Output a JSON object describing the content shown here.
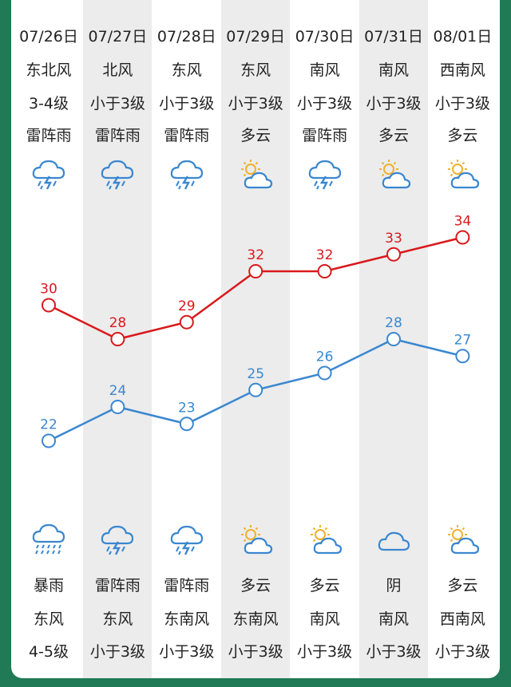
{
  "colors": {
    "background": "#1f7a55",
    "panel": "#ffffff",
    "shade": "#ececec",
    "high_line": "#d9191c",
    "low_line": "#3a87d0",
    "icon": "#3a87d0",
    "icon_sun": "#f0b12c"
  },
  "days": [
    {
      "date": "07/26日",
      "day_wind_dir": "东北风",
      "day_wind_level": "3-4级",
      "day_weather": "雷阵雨",
      "day_icon": "thunderstorm-icon",
      "night_icon": "heavy-rain-icon",
      "night_weather": "暴雨",
      "night_wind_dir": "东风",
      "night_wind_level": "4-5级",
      "shaded": false
    },
    {
      "date": "07/27日",
      "day_wind_dir": "北风",
      "day_wind_level": "小于3级",
      "day_weather": "雷阵雨",
      "day_icon": "thunderstorm-icon",
      "night_icon": "thunderstorm-icon",
      "night_weather": "雷阵雨",
      "night_wind_dir": "东风",
      "night_wind_level": "小于3级",
      "shaded": true
    },
    {
      "date": "07/28日",
      "day_wind_dir": "东风",
      "day_wind_level": "小于3级",
      "day_weather": "雷阵雨",
      "day_icon": "thunderstorm-icon",
      "night_icon": "thunderstorm-icon",
      "night_weather": "雷阵雨",
      "night_wind_dir": "东南风",
      "night_wind_level": "小于3级",
      "shaded": false
    },
    {
      "date": "07/29日",
      "day_wind_dir": "东风",
      "day_wind_level": "小于3级",
      "day_weather": "多云",
      "day_icon": "partly-cloudy-icon",
      "night_icon": "partly-cloudy-icon",
      "night_weather": "多云",
      "night_wind_dir": "东南风",
      "night_wind_level": "小于3级",
      "shaded": true
    },
    {
      "date": "07/30日",
      "day_wind_dir": "南风",
      "day_wind_level": "小于3级",
      "day_weather": "雷阵雨",
      "day_icon": "thunderstorm-icon",
      "night_icon": "partly-cloudy-icon",
      "night_weather": "多云",
      "night_wind_dir": "南风",
      "night_wind_level": "小于3级",
      "shaded": false
    },
    {
      "date": "07/31日",
      "day_wind_dir": "南风",
      "day_wind_level": "小于3级",
      "day_weather": "多云",
      "day_icon": "partly-cloudy-icon",
      "night_icon": "cloudy-icon",
      "night_weather": "阴",
      "night_wind_dir": "南风",
      "night_wind_level": "小于3级",
      "shaded": true
    },
    {
      "date": "08/01日",
      "day_wind_dir": "西南风",
      "day_wind_level": "小于3级",
      "day_weather": "多云",
      "day_icon": "partly-cloudy-icon",
      "night_icon": "partly-cloudy-icon",
      "night_weather": "多云",
      "night_wind_dir": "西南风",
      "night_wind_level": "小于3级",
      "shaded": false
    }
  ],
  "chart_data": {
    "type": "line",
    "categories": [
      "07/26日",
      "07/27日",
      "07/28日",
      "07/29日",
      "07/30日",
      "07/31日",
      "08/01日"
    ],
    "series": [
      {
        "values": [
          30,
          28,
          29,
          32,
          32,
          33,
          34
        ],
        "color": "#d9191c"
      },
      {
        "values": [
          22,
          24,
          23,
          25,
          26,
          28,
          27
        ],
        "color": "#3a87d0"
      }
    ],
    "ylim": [
      20,
      36
    ]
  }
}
